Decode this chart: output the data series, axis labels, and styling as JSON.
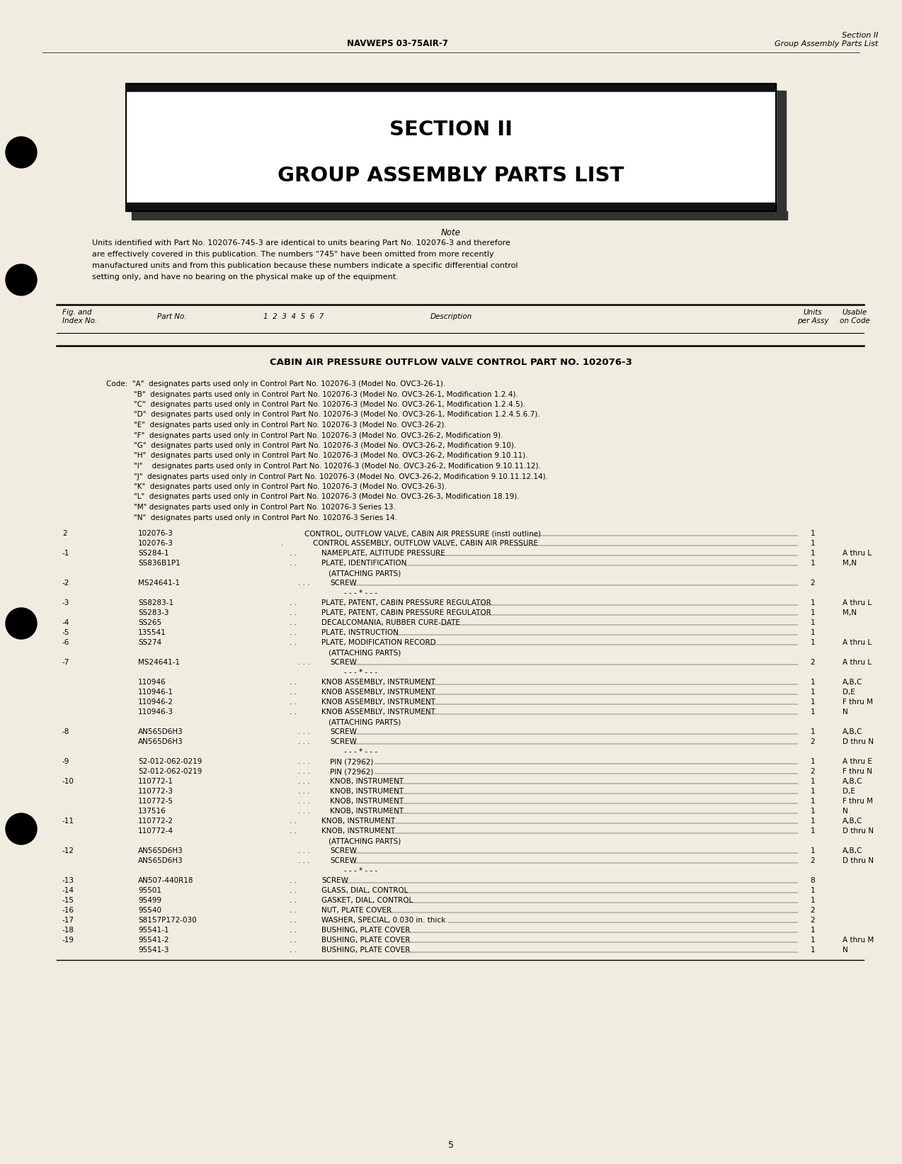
{
  "bg_color": "#f0ede0",
  "header_left": "NAVWEPS 03-75AIR-7",
  "header_right_line1": "Section II",
  "header_right_line2": "Group Assembly Parts List",
  "section_title_line1": "SECTION II",
  "section_title_line2": "GROUP ASSEMBLY PARTS LIST",
  "note_title": "Note",
  "note_text": "Units identified with Part No. 102076-745-3 are identical to units bearing Part No. 102076-3 and therefore are effectively covered in this publication. The numbers \"745\" have been omitted from more recently manufactured units and from this publication because these numbers indicate a specific differential control setting only, and have no bearing on the physical make up of the equipment.",
  "cabin_title": "CABIN AIR PRESSURE OUTFLOW VALVE CONTROL PART NO. 102076-3",
  "code_lines": [
    "Code:  \"A\"  designates parts used only in Control Part No. 102076-3 (Model No. OVC3-26-1).",
    "            \"B\"  designates parts used only in Control Part No. 102076-3 (Model No. OVC3-26-1, Modification 1.2.4).",
    "            \"C\"  designates parts used only in Control Part No. 102076-3 (Model No. OVC3-26-1, Modification 1.2.4.5).",
    "            \"D\"  designates parts used only in Control Part No. 102076-3 (Model No. OVC3-26-1, Modification 1.2.4.5.6.7).",
    "            \"E\"  designates parts used only in Control Part No. 102076-3 (Model No. OVC3-26-2).",
    "            \"F\"  designates parts used only in Control Part No. 102076-3 (Model No. OVC3-26-2, Modification 9).",
    "            \"G\"  designates parts used only in Control Part No. 102076-3 (Model No. OVC3-26-2, Modification 9.10).",
    "            \"H\"  designates parts used only in Control Part No. 102076-3 (Model No. OVC3-26-2, Modification 9.10.11).",
    "            \"I\"    designates parts used only in Control Part No. 102076-3 (Model No. OVC3-26-2, Modification 9.10.11.12).",
    "            \"J\"  designates parts used only in Control Part No. 102076-3 (Model No. OVC3-26-2, Modification 9.10.11.12.14).",
    "            \"K\"  designates parts used only in Control Part No. 102076-3 (Model No. OVC3-26-3).",
    "            \"L\"  designates parts used only in Control Part No. 102076-3 (Model No. OVC3-26-3, Modification 18.19).",
    "            \"M\" designates parts used only in Control Part No. 102076-3 Series 13.",
    "            \"N\"  designates parts used only in Control Part No. 102076-3 Series 14."
  ],
  "parts_rows": [
    {
      "fig": "2",
      "part": "102076-3",
      "dots": "",
      "indent": 0,
      "desc": "CONTROL, OUTFLOW VALVE, CABIN AIR PRESSURE (instl outline)",
      "units": "1",
      "code": ""
    },
    {
      "fig": "",
      "part": "102076-3",
      "dots": ".",
      "indent": 1,
      "desc": "CONTROL ASSEMBLY, OUTFLOW VALVE, CABIN AIR PRESSURE",
      "units": "1",
      "code": ""
    },
    {
      "fig": "-1",
      "part": "SS284-1",
      "dots": ". .",
      "indent": 2,
      "desc": "NAMEPLATE, ALTITUDE PRESSURE",
      "units": "1",
      "code": "A thru L"
    },
    {
      "fig": "",
      "part": "SS836B1P1",
      "dots": ". .",
      "indent": 2,
      "desc": "PLATE, IDENTIFICATION",
      "units": "1",
      "code": "M,N"
    },
    {
      "fig": "",
      "part": "",
      "dots": "",
      "indent": 2,
      "desc": "(ATTACHING PARTS)",
      "units": "",
      "code": ""
    },
    {
      "fig": "-2",
      "part": "MS24641-1",
      "dots": ". . .",
      "indent": 3,
      "desc": "SCREW",
      "units": "2",
      "code": ""
    },
    {
      "fig": "",
      "part": "",
      "dots": "",
      "indent": 3,
      "desc": "- - - * - - -",
      "units": "",
      "code": ""
    },
    {
      "fig": "-3",
      "part": "SS8283-1",
      "dots": ". .",
      "indent": 2,
      "desc": "PLATE, PATENT, CABIN PRESSURE REGULATOR",
      "units": "1",
      "code": "A thru L"
    },
    {
      "fig": "",
      "part": "SS283-3",
      "dots": ". .",
      "indent": 2,
      "desc": "PLATE, PATENT, CABIN PRESSURE REGULATOR",
      "units": "1",
      "code": "M,N"
    },
    {
      "fig": "-4",
      "part": "SS265",
      "dots": ". .",
      "indent": 2,
      "desc": "DECALCOMANIA, RUBBER CURE-DATE",
      "units": "1",
      "code": ""
    },
    {
      "fig": "-5",
      "part": "135541",
      "dots": ". .",
      "indent": 2,
      "desc": "PLATE, INSTRUCTION",
      "units": "1",
      "code": ""
    },
    {
      "fig": "-6",
      "part": "SS274",
      "dots": ". .",
      "indent": 2,
      "desc": "PLATE, MODIFICATION RECORD",
      "units": "1",
      "code": "A thru L"
    },
    {
      "fig": "",
      "part": "",
      "dots": "",
      "indent": 2,
      "desc": "(ATTACHING PARTS)",
      "units": "",
      "code": ""
    },
    {
      "fig": "-7",
      "part": "MS24641-1",
      "dots": ". . .",
      "indent": 3,
      "desc": "SCREW",
      "units": "2",
      "code": "A thru L"
    },
    {
      "fig": "",
      "part": "",
      "dots": "",
      "indent": 3,
      "desc": "- - - * - - -",
      "units": "",
      "code": ""
    },
    {
      "fig": "",
      "part": "110946",
      "dots": ". .",
      "indent": 2,
      "desc": "KNOB ASSEMBLY, INSTRUMENT",
      "units": "1",
      "code": "A,B,C"
    },
    {
      "fig": "",
      "part": "110946-1",
      "dots": ". .",
      "indent": 2,
      "desc": "KNOB ASSEMBLY, INSTRUMENT",
      "units": "1",
      "code": "D,E"
    },
    {
      "fig": "",
      "part": "110946-2",
      "dots": ". .",
      "indent": 2,
      "desc": "KNOB ASSEMBLY, INSTRUMENT",
      "units": "1",
      "code": "F thru M"
    },
    {
      "fig": "",
      "part": "110946-3",
      "dots": ". .",
      "indent": 2,
      "desc": "KNOB ASSEMBLY, INSTRUMENT",
      "units": "1",
      "code": "N"
    },
    {
      "fig": "",
      "part": "",
      "dots": "",
      "indent": 2,
      "desc": "(ATTACHING PARTS)",
      "units": "",
      "code": ""
    },
    {
      "fig": "-8",
      "part": "AN565D6H3",
      "dots": ". . .",
      "indent": 3,
      "desc": "SCREW",
      "units": "1",
      "code": "A,B,C"
    },
    {
      "fig": "",
      "part": "AN565D6H3",
      "dots": ". . .",
      "indent": 3,
      "desc": "SCREW",
      "units": "2",
      "code": "D thru N"
    },
    {
      "fig": "",
      "part": "",
      "dots": "",
      "indent": 3,
      "desc": "- - - * - - -",
      "units": "",
      "code": ""
    },
    {
      "fig": "-9",
      "part": "52-012-062-0219",
      "dots": ". . .",
      "indent": 3,
      "desc": "PIN (72962)",
      "units": "1",
      "code": "A thru E"
    },
    {
      "fig": "",
      "part": "52-012-062-0219",
      "dots": ". . .",
      "indent": 3,
      "desc": "PIN (72962)",
      "units": "2",
      "code": "F thru N"
    },
    {
      "fig": "-10",
      "part": "110772-1",
      "dots": ". . .",
      "indent": 3,
      "desc": "KNOB, INSTRUMENT",
      "units": "1",
      "code": "A,B,C"
    },
    {
      "fig": "",
      "part": "110772-3",
      "dots": ". . .",
      "indent": 3,
      "desc": "KNOB, INSTRUMENT",
      "units": "1",
      "code": "D,E"
    },
    {
      "fig": "",
      "part": "110772-5",
      "dots": ". . .",
      "indent": 3,
      "desc": "KNOB, INSTRUMENT",
      "units": "1",
      "code": "F thru M"
    },
    {
      "fig": "",
      "part": "137516",
      "dots": ". . .",
      "indent": 3,
      "desc": "KNOB, INSTRUMENT",
      "units": "1",
      "code": "N"
    },
    {
      "fig": "-11",
      "part": "110772-2",
      "dots": ". .",
      "indent": 2,
      "desc": "KNOB, INSTRUMENT",
      "units": "1",
      "code": "A,B,C"
    },
    {
      "fig": "",
      "part": "110772-4",
      "dots": ". .",
      "indent": 2,
      "desc": "KNOB, INSTRUMENT",
      "units": "1",
      "code": "D thru N"
    },
    {
      "fig": "",
      "part": "",
      "dots": "",
      "indent": 2,
      "desc": "(ATTACHING PARTS)",
      "units": "",
      "code": ""
    },
    {
      "fig": "-12",
      "part": "AN565D6H3",
      "dots": ". . .",
      "indent": 3,
      "desc": "SCREW",
      "units": "1",
      "code": "A,B,C"
    },
    {
      "fig": "",
      "part": "AN565D6H3",
      "dots": ". . .",
      "indent": 3,
      "desc": "SCREW",
      "units": "2",
      "code": "D thru N"
    },
    {
      "fig": "",
      "part": "",
      "dots": "",
      "indent": 3,
      "desc": "- - - * - - -",
      "units": "",
      "code": ""
    },
    {
      "fig": "-13",
      "part": "AN507-440R18",
      "dots": ". .",
      "indent": 2,
      "desc": "SCREW",
      "units": "8",
      "code": ""
    },
    {
      "fig": "-14",
      "part": "95501",
      "dots": ". .",
      "indent": 2,
      "desc": "GLASS, DIAL, CONTROL",
      "units": "1",
      "code": ""
    },
    {
      "fig": "-15",
      "part": "95499",
      "dots": ". .",
      "indent": 2,
      "desc": "GASKET, DIAL, CONTROL",
      "units": "1",
      "code": ""
    },
    {
      "fig": "-16",
      "part": "95540",
      "dots": ". .",
      "indent": 2,
      "desc": "NUT, PLATE COVER",
      "units": "2",
      "code": ""
    },
    {
      "fig": "-17",
      "part": "S8157P172-030",
      "dots": ". .",
      "indent": 2,
      "desc": "WASHER, SPECIAL, 0.030 in. thick",
      "units": "2",
      "code": ""
    },
    {
      "fig": "-18",
      "part": "95541-1",
      "dots": ". .",
      "indent": 2,
      "desc": "BUSHING, PLATE COVER",
      "units": "1",
      "code": ""
    },
    {
      "fig": "-19",
      "part": "95541-2",
      "dots": ". .",
      "indent": 2,
      "desc": "BUSHING, PLATE COVER",
      "units": "1",
      "code": "A thru M"
    },
    {
      "fig": "",
      "part": "95541-3",
      "dots": ". .",
      "indent": 2,
      "desc": "BUSHING, PLATE COVER",
      "units": "1",
      "code": "N"
    }
  ],
  "page_number": "5"
}
